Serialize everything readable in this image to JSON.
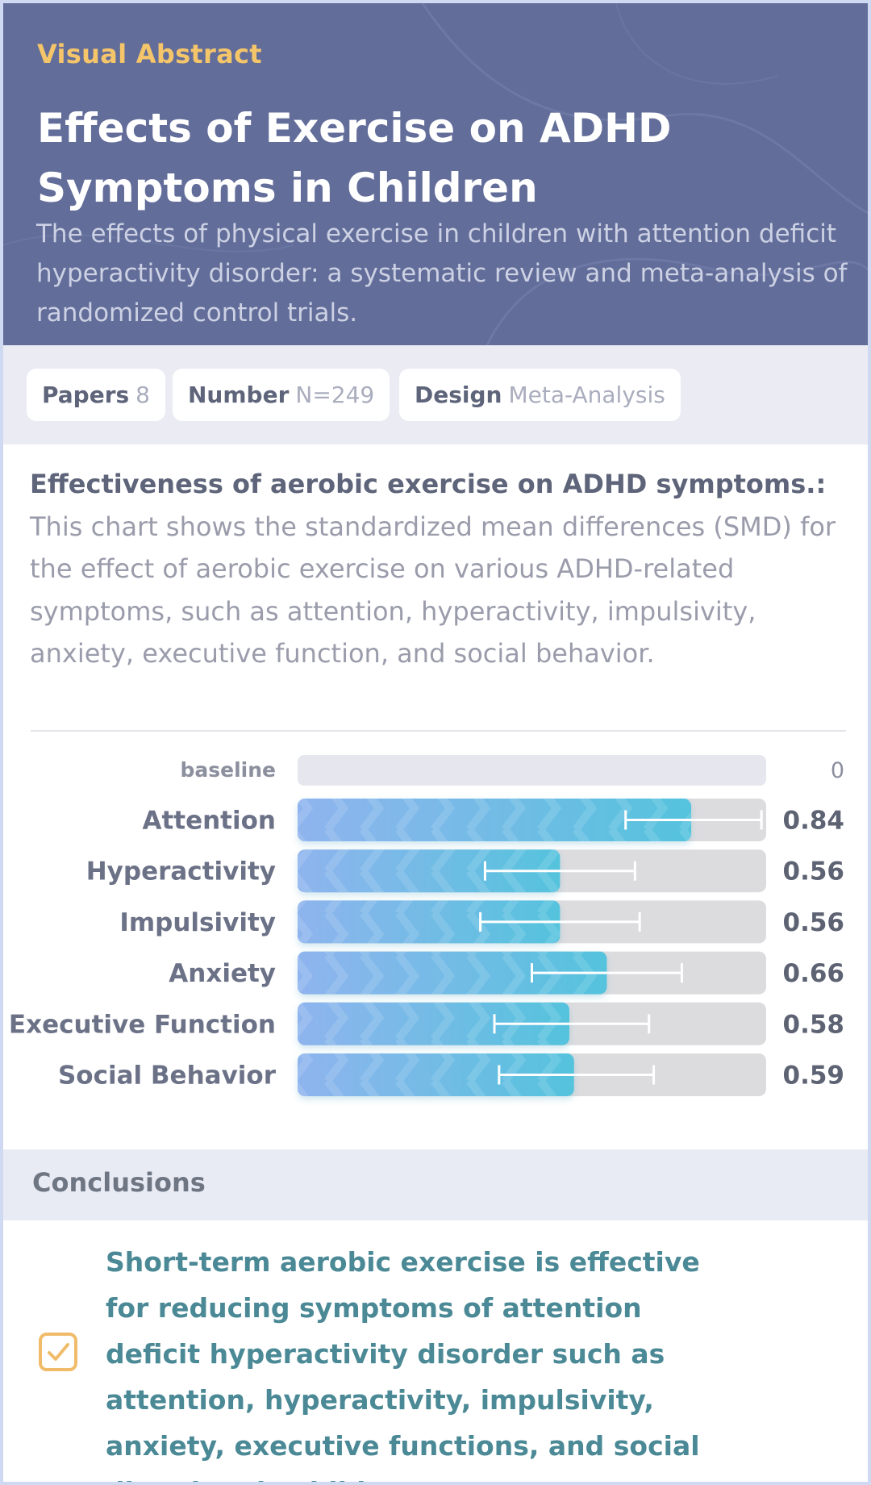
{
  "header": {
    "eyebrow": "Visual Abstract",
    "title": "Effects of Exercise on ADHD Symptoms in Children",
    "subtitle": "The effects of physical exercise in children with attention deficit hyperactivity disorder: a systematic review and meta-analysis of randomized control trials."
  },
  "stats": [
    {
      "label": "Papers",
      "value": "8"
    },
    {
      "label": "Number",
      "value": "N=249"
    },
    {
      "label": "Design",
      "value": "Meta-Analysis"
    }
  ],
  "description": {
    "lead": "Effectiveness of aerobic exercise on ADHD symptoms.:",
    "body": " This chart shows the standardized mean differences (SMD) for the effect of aerobic exercise on various ADHD-related symptoms, such as attention, hyperactivity, impulsivity, anxiety, executive function, and social behavior."
  },
  "chart_data": {
    "type": "bar",
    "orientation": "horizontal",
    "title": "Effectiveness of aerobic exercise on ADHD symptoms.",
    "xlabel": "Standardized mean difference (SMD)",
    "baseline": {
      "label": "baseline",
      "value": 0,
      "display": "0"
    },
    "categories": [
      "Attention",
      "Hyperactivity",
      "Impulsivity",
      "Anxiety",
      "Executive Function",
      "Social Behavior"
    ],
    "values": [
      0.84,
      0.56,
      0.56,
      0.66,
      0.58,
      0.59
    ],
    "value_labels": [
      "0.84",
      "0.56",
      "0.56",
      "0.66",
      "0.58",
      "0.59"
    ],
    "ci_low": [
      0.7,
      0.4,
      0.39,
      0.5,
      0.42,
      0.43
    ],
    "ci_high": [
      0.99,
      0.72,
      0.73,
      0.82,
      0.75,
      0.76
    ],
    "xlim": [
      0,
      1.0
    ],
    "colors": {
      "bar_start": "#8fb4ee",
      "bar_end": "#55c3dd",
      "track": "#dcdcdf",
      "baseline_track": "#e6e7ee"
    }
  },
  "conclusions": {
    "title": "Conclusions",
    "text": "Short-term aerobic exercise is effective for reducing symptoms of attention deficit hyperactivity disorder such as attention, hyperactivity, impulsivity, anxiety, executive functions, and social disorders in children.",
    "icon": "checkbox-icon"
  },
  "colors": {
    "header_bg": "#626d9a",
    "accent": "#f5c56a",
    "conclusion_text": "#4a8995"
  }
}
